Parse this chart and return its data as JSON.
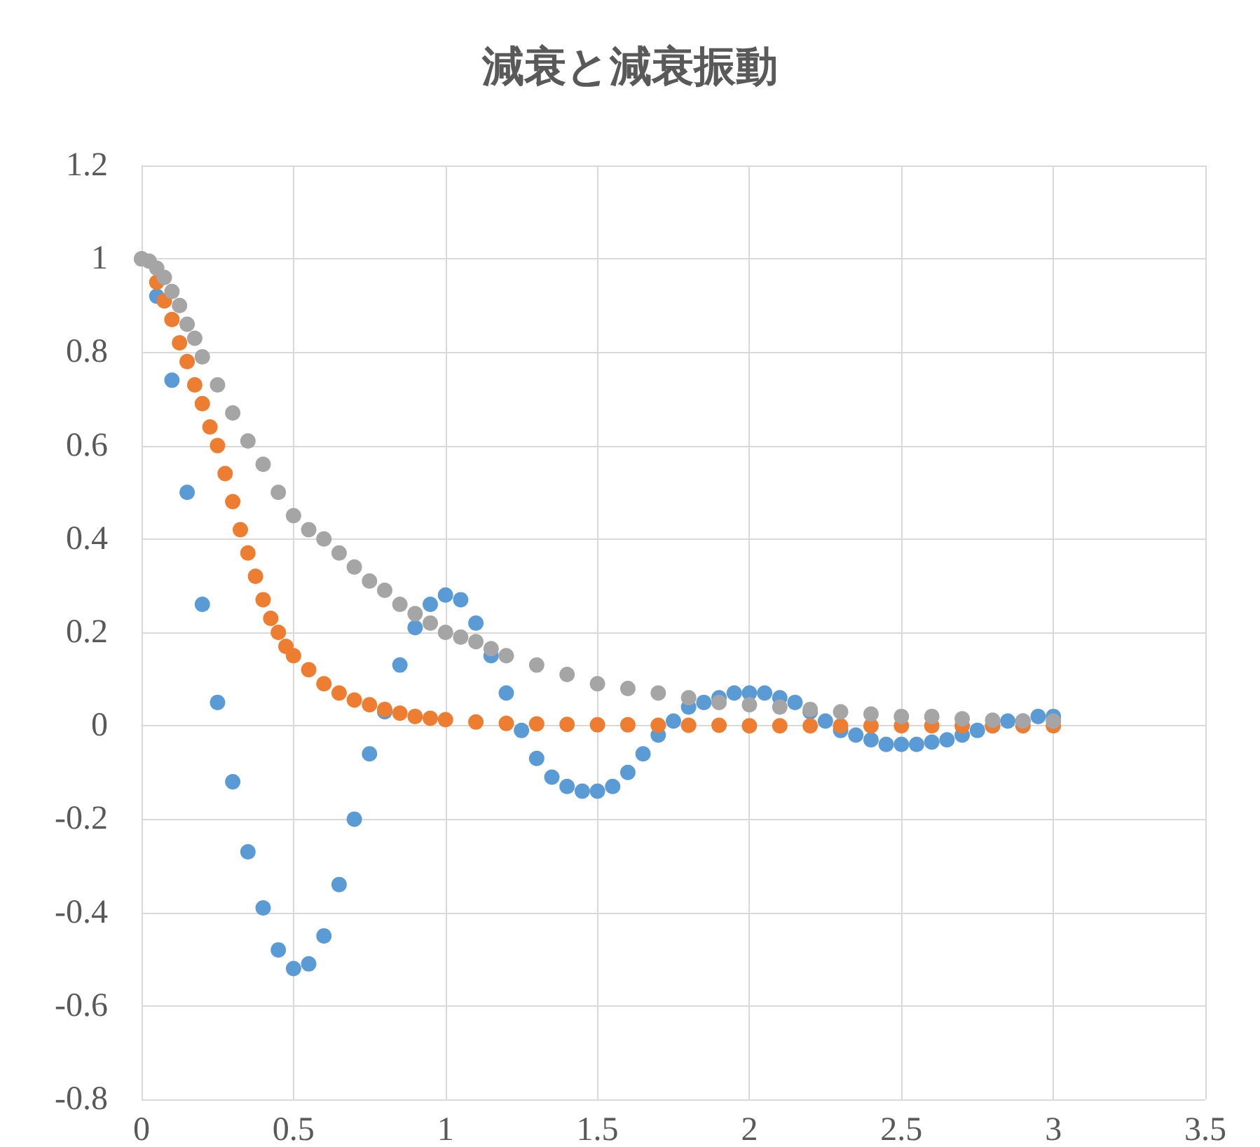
{
  "chart_data": {
    "type": "scatter",
    "title": "減衰と減衰振動",
    "marker": "circle",
    "grid": true,
    "xlim": [
      0,
      3.5
    ],
    "xticks": [
      0,
      0.5,
      1,
      1.5,
      2,
      2.5,
      3,
      3.5
    ],
    "ylim": [
      -0.8,
      1.2
    ],
    "yticks": [
      -0.8,
      -0.6,
      -0.4,
      -0.2,
      0,
      0.2,
      0.4,
      0.6,
      0.8,
      1,
      1.2
    ],
    "series": [
      {
        "color": "#5b9bd5",
        "x": [
          0,
          0.05,
          0.1,
          0.15,
          0.2,
          0.25,
          0.3,
          0.35,
          0.4,
          0.45,
          0.5,
          0.55,
          0.6,
          0.65,
          0.7,
          0.75,
          0.8,
          0.85,
          0.9,
          0.95,
          1,
          1.05,
          1.1,
          1.15,
          1.2,
          1.25,
          1.3,
          1.35,
          1.4,
          1.45,
          1.5,
          1.55,
          1.6,
          1.65,
          1.7,
          1.75,
          1.8,
          1.85,
          1.9,
          1.95,
          2,
          2.05,
          2.1,
          2.15,
          2.2,
          2.25,
          2.3,
          2.35,
          2.4,
          2.45,
          2.5,
          2.55,
          2.6,
          2.65,
          2.7,
          2.75,
          2.8,
          2.85,
          2.9,
          2.95,
          3
        ],
        "values": [
          1,
          0.92,
          0.74,
          0.5,
          0.26,
          0.05,
          -0.12,
          -0.27,
          -0.39,
          -0.48,
          -0.52,
          -0.51,
          -0.45,
          -0.34,
          -0.2,
          -0.06,
          0.03,
          0.13,
          0.21,
          0.26,
          0.28,
          0.27,
          0.22,
          0.15,
          0.07,
          -0.01,
          -0.07,
          -0.11,
          -0.13,
          -0.14,
          -0.14,
          -0.13,
          -0.1,
          -0.06,
          -0.02,
          0.01,
          0.04,
          0.05,
          0.06,
          0.07,
          0.07,
          0.07,
          0.06,
          0.05,
          0.03,
          0.01,
          -0.01,
          -0.02,
          -0.03,
          -0.04,
          -0.04,
          -0.04,
          -0.035,
          -0.03,
          -0.02,
          -0.01,
          0,
          0.01,
          0.01,
          0.02,
          0.02
        ]
      },
      {
        "color": "#ed7d31",
        "x": [
          0.05,
          0.075,
          0.1,
          0.125,
          0.15,
          0.175,
          0.2,
          0.225,
          0.25,
          0.275,
          0.3,
          0.325,
          0.35,
          0.375,
          0.4,
          0.425,
          0.45,
          0.475,
          0.5,
          0.55,
          0.6,
          0.65,
          0.7,
          0.75,
          0.8,
          0.85,
          0.9,
          0.95,
          1,
          1.1,
          1.2,
          1.3,
          1.4,
          1.5,
          1.6,
          1.7,
          1.8,
          1.9,
          2,
          2.1,
          2.2,
          2.3,
          2.4,
          2.5,
          2.6,
          2.7,
          2.8,
          2.9,
          3
        ],
        "values": [
          0.95,
          0.91,
          0.87,
          0.82,
          0.78,
          0.73,
          0.69,
          0.64,
          0.6,
          0.54,
          0.48,
          0.42,
          0.37,
          0.32,
          0.27,
          0.23,
          0.2,
          0.17,
          0.15,
          0.12,
          0.09,
          0.07,
          0.055,
          0.045,
          0.035,
          0.027,
          0.02,
          0.016,
          0.013,
          0.008,
          0.005,
          0.004,
          0.003,
          0.002,
          0.002,
          0.001,
          0.001,
          0.001,
          0,
          0,
          0,
          0,
          0,
          0,
          0,
          0,
          0,
          0,
          0
        ]
      },
      {
        "color": "#a5a5a5",
        "x": [
          0,
          0.025,
          0.05,
          0.075,
          0.1,
          0.125,
          0.15,
          0.175,
          0.2,
          0.25,
          0.3,
          0.35,
          0.4,
          0.45,
          0.5,
          0.55,
          0.6,
          0.65,
          0.7,
          0.75,
          0.8,
          0.85,
          0.9,
          0.95,
          1,
          1.05,
          1.1,
          1.15,
          1.2,
          1.3,
          1.4,
          1.5,
          1.6,
          1.7,
          1.8,
          1.9,
          2,
          2.1,
          2.2,
          2.3,
          2.4,
          2.5,
          2.6,
          2.7,
          2.8,
          2.9,
          3
        ],
        "values": [
          1,
          0.995,
          0.98,
          0.96,
          0.93,
          0.9,
          0.86,
          0.83,
          0.79,
          0.73,
          0.67,
          0.61,
          0.56,
          0.5,
          0.45,
          0.42,
          0.4,
          0.37,
          0.34,
          0.31,
          0.29,
          0.26,
          0.24,
          0.22,
          0.2,
          0.19,
          0.18,
          0.165,
          0.15,
          0.13,
          0.11,
          0.09,
          0.08,
          0.07,
          0.06,
          0.05,
          0.045,
          0.04,
          0.035,
          0.03,
          0.025,
          0.02,
          0.02,
          0.015,
          0.012,
          0.01,
          0.01
        ]
      }
    ]
  }
}
